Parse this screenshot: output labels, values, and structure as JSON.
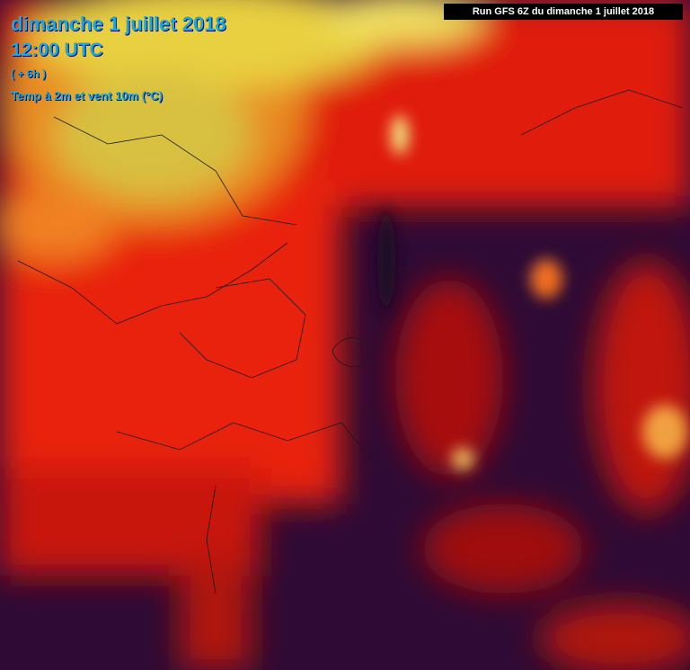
{
  "header": {
    "date": "dimanche 1 juillet 2018",
    "time": "12:00 UTC",
    "offset": "( + 6h )",
    "variable": "Temp à 2m et vent 10m (°C)"
  },
  "run_label": "Run GFS 6Z du dimanche 1 juillet 2018"
}
